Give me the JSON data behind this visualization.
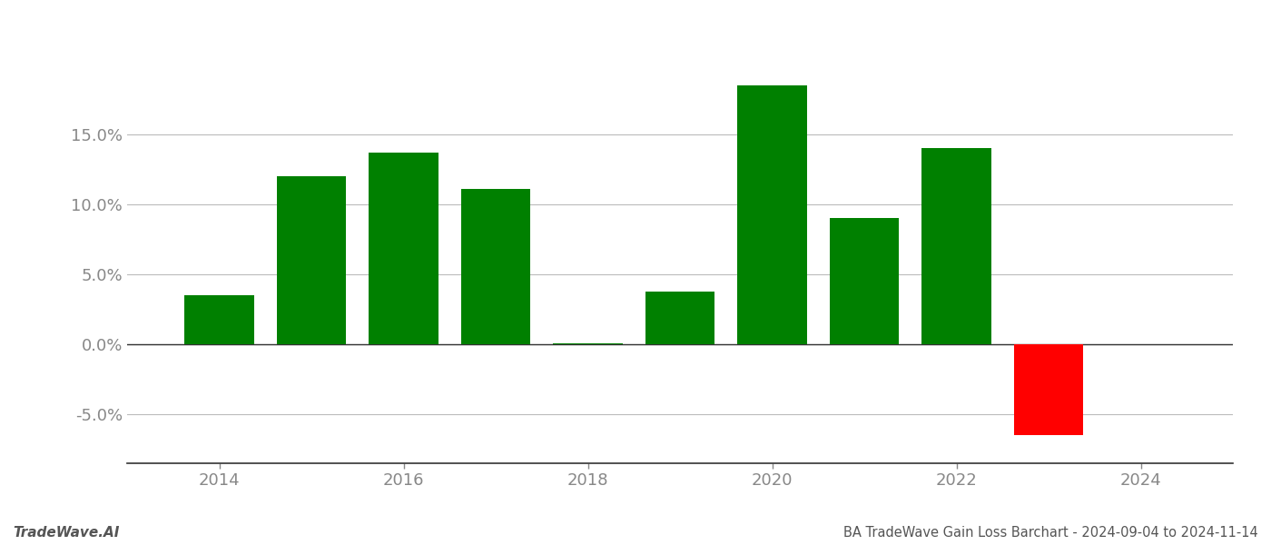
{
  "years": [
    2014,
    2015,
    2016,
    2017,
    2018,
    2019,
    2020,
    2021,
    2022,
    2023
  ],
  "values": [
    0.035,
    0.12,
    0.137,
    0.111,
    0.001,
    0.038,
    0.185,
    0.09,
    0.14,
    -0.065
  ],
  "colors": [
    "#008000",
    "#008000",
    "#008000",
    "#008000",
    "#008000",
    "#008000",
    "#008000",
    "#008000",
    "#008000",
    "#ff0000"
  ],
  "ylim": [
    -0.085,
    0.215
  ],
  "yticks": [
    -0.05,
    0.0,
    0.05,
    0.1,
    0.15
  ],
  "xlim": [
    2013.0,
    2025.0
  ],
  "xticks": [
    2014,
    2016,
    2018,
    2020,
    2022,
    2024
  ],
  "title": "BA TradeWave Gain Loss Barchart - 2024-09-04 to 2024-11-14",
  "watermark": "TradeWave.AI",
  "bar_width": 0.75,
  "figsize": [
    14.0,
    6.0
  ],
  "dpi": 100,
  "background_color": "#ffffff",
  "grid_color": "#bbbbbb",
  "spine_color": "#333333",
  "title_fontsize": 10.5,
  "watermark_fontsize": 11,
  "tick_fontsize": 13,
  "tick_color": "#888888"
}
